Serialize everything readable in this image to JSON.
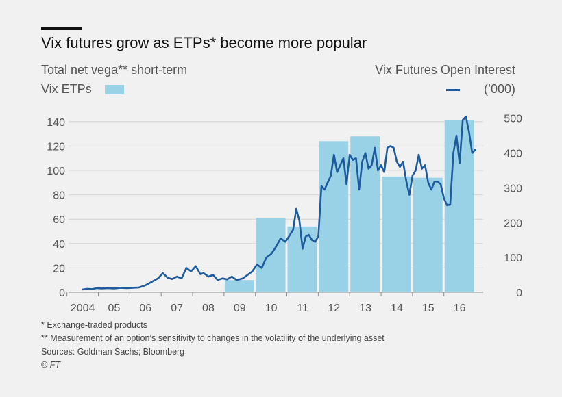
{
  "header": {
    "title": "Vix futures grow as ETPs* become more popular",
    "left_axis_title": "Total net vega** short-term",
    "right_axis_title": "Vix Futures Open Interest",
    "bar_legend_label": "Vix ETPs",
    "line_legend_label": "(’000)"
  },
  "footer": {
    "note1": "* Exchange-traded products",
    "note2": "** Measurement of an option’s sensitivity to changes in the volatility of the underlying asset",
    "sources": "Sources: Goldman Sachs; Bloomberg",
    "credit": "© FT"
  },
  "colors": {
    "bar": "#99d2e6",
    "line": "#1d5b9e",
    "background": "#f1f1f1"
  },
  "chart_data": {
    "type": "bar+line",
    "x_tick_labels": [
      "2004",
      "05",
      "06",
      "07",
      "08",
      "09",
      "10",
      "11",
      "12",
      "13",
      "14",
      "15",
      "16"
    ],
    "bars": {
      "name": "Vix ETPs",
      "axis": "left",
      "categories": [
        "09",
        "10",
        "11",
        "12",
        "13",
        "14",
        "15",
        "16"
      ],
      "values": [
        10,
        61,
        54,
        124,
        128,
        95,
        94,
        141
      ]
    },
    "line": {
      "name": "Vix Futures Open Interest",
      "axis": "right",
      "units": "’000",
      "x": [
        2004.0,
        2004.15,
        2004.3,
        2004.45,
        2004.6,
        2004.8,
        2005.0,
        2005.2,
        2005.4,
        2005.6,
        2005.8,
        2006.0,
        2006.2,
        2006.4,
        2006.55,
        2006.7,
        2006.85,
        2007.0,
        2007.15,
        2007.3,
        2007.45,
        2007.6,
        2007.75,
        2007.85,
        2008.0,
        2008.15,
        2008.3,
        2008.45,
        2008.6,
        2008.75,
        2008.9,
        2009.1,
        2009.25,
        2009.4,
        2009.55,
        2009.7,
        2009.85,
        2010.0,
        2010.15,
        2010.3,
        2010.45,
        2010.6,
        2010.7,
        2010.8,
        2010.9,
        2011.0,
        2011.1,
        2011.2,
        2011.3,
        2011.4,
        2011.5,
        2011.6,
        2011.7,
        2011.8,
        2011.9,
        2012.0,
        2012.1,
        2012.2,
        2012.3,
        2012.4,
        2012.5,
        2012.6,
        2012.7,
        2012.8,
        2012.9,
        2013.0,
        2013.1,
        2013.2,
        2013.3,
        2013.4,
        2013.5,
        2013.6,
        2013.7,
        2013.8,
        2013.9,
        2014.0,
        2014.1,
        2014.2,
        2014.3,
        2014.4,
        2014.5,
        2014.6,
        2014.7,
        2014.8,
        2014.9,
        2015.0,
        2015.1,
        2015.2,
        2015.3,
        2015.4,
        2015.5,
        2015.6,
        2015.7,
        2015.8,
        2015.9,
        2016.0,
        2016.1,
        2016.2,
        2016.3,
        2016.4,
        2016.5
      ],
      "values": [
        8,
        10,
        9,
        12,
        11,
        12,
        11,
        13,
        12,
        13,
        14,
        20,
        30,
        40,
        55,
        42,
        38,
        45,
        40,
        70,
        60,
        75,
        52,
        55,
        45,
        50,
        35,
        40,
        37,
        45,
        35,
        40,
        50,
        60,
        80,
        70,
        100,
        110,
        130,
        155,
        145,
        165,
        180,
        240,
        205,
        125,
        160,
        165,
        150,
        145,
        160,
        305,
        295,
        315,
        335,
        395,
        345,
        365,
        385,
        310,
        395,
        380,
        385,
        295,
        375,
        400,
        355,
        365,
        415,
        350,
        365,
        345,
        415,
        420,
        415,
        375,
        360,
        375,
        320,
        280,
        335,
        350,
        395,
        355,
        365,
        315,
        295,
        318,
        318,
        310,
        270,
        250,
        252,
        400,
        450,
        370,
        495,
        505,
        460,
        400,
        410
      ]
    },
    "left_axis": {
      "range": [
        0,
        150
      ],
      "ticks": [
        0,
        20,
        40,
        60,
        80,
        100,
        120,
        140
      ]
    },
    "right_axis": {
      "range": [
        0,
        525
      ],
      "ticks": [
        0,
        100,
        200,
        300,
        400,
        500
      ]
    },
    "x_range": [
      2003.55,
      2016.75
    ],
    "grid": "horizontal"
  }
}
